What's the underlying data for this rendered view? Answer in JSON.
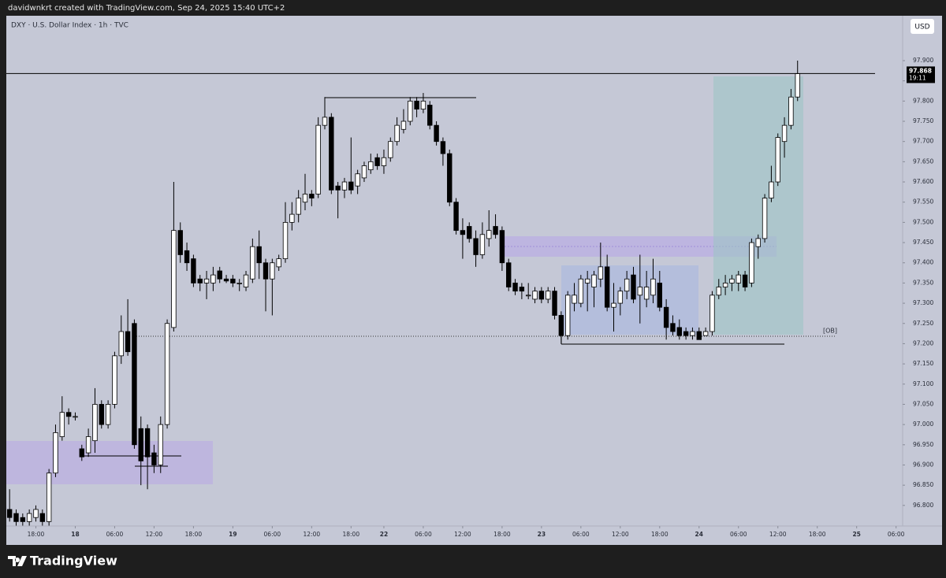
{
  "chart_data": {
    "type": "candlestick",
    "attribution": "davidwnkrt created with TradingView.com, Sep 24, 2025 15:40 UTC+2",
    "title": "DXY · U.S. Dollar Index · 1h · TVC",
    "currency": "USD",
    "countdown": "19:11",
    "annotation": "[OB]",
    "brand": "TradingView",
    "up_color": "#ffffff",
    "down_color": "#000000",
    "wick_color": "#000000",
    "open": [
      96.79,
      96.78,
      96.77,
      96.76,
      96.77,
      96.78,
      96.76,
      96.88,
      96.97,
      97.03,
      97.02,
      96.94,
      96.93,
      96.96,
      97.05,
      97.0,
      97.05,
      97.17,
      97.23,
      97.25,
      96.99,
      96.99,
      96.93,
      96.9,
      97.0,
      97.24,
      97.48,
      97.43,
      97.41,
      97.36,
      97.35,
      97.35,
      97.38,
      97.36,
      97.36,
      97.35,
      97.34,
      97.36,
      97.44,
      97.4,
      97.36,
      97.39,
      97.41,
      97.5,
      97.52,
      97.55,
      97.57,
      97.57,
      97.74,
      97.76,
      97.59,
      97.58,
      97.6,
      97.59,
      97.61,
      97.63,
      97.66,
      97.64,
      97.66,
      97.7,
      97.73,
      97.75,
      97.8,
      97.78,
      97.79,
      97.74,
      97.7,
      97.67,
      97.55,
      97.48,
      97.49,
      97.46,
      97.42,
      97.46,
      97.49,
      97.48,
      97.4,
      97.35,
      97.34,
      97.32,
      97.31,
      97.33,
      97.31,
      97.33,
      97.27,
      97.22,
      97.3,
      97.3,
      97.35,
      97.34,
      97.36,
      97.39,
      97.29,
      97.3,
      97.33,
      97.37,
      97.32,
      97.31,
      97.32,
      97.35,
      97.29,
      97.25,
      97.24,
      97.23,
      97.22,
      97.23,
      97.22,
      97.23,
      97.32,
      97.34,
      97.35,
      97.35,
      97.37,
      97.35,
      97.44,
      97.46,
      97.56,
      97.6,
      97.7,
      97.74,
      97.81
    ],
    "high": [
      96.84,
      96.79,
      96.78,
      96.79,
      96.8,
      96.79,
      96.89,
      97.0,
      97.07,
      97.04,
      97.03,
      96.95,
      96.99,
      97.09,
      97.06,
      97.06,
      97.18,
      97.27,
      97.31,
      97.26,
      97.02,
      97.0,
      96.95,
      97.02,
      97.26,
      97.6,
      97.5,
      97.45,
      97.42,
      97.37,
      97.38,
      97.39,
      97.39,
      97.37,
      97.37,
      97.36,
      97.38,
      97.46,
      97.48,
      97.41,
      97.41,
      97.42,
      97.55,
      97.55,
      97.58,
      97.62,
      97.58,
      97.76,
      97.81,
      97.77,
      97.6,
      97.61,
      97.71,
      97.63,
      97.65,
      97.67,
      97.67,
      97.68,
      97.71,
      97.76,
      97.78,
      97.81,
      97.81,
      97.82,
      97.8,
      97.75,
      97.71,
      97.68,
      97.56,
      97.51,
      97.5,
      97.48,
      97.5,
      97.53,
      97.52,
      97.49,
      97.41,
      97.36,
      97.35,
      97.35,
      97.34,
      97.34,
      97.34,
      97.34,
      97.28,
      97.33,
      97.35,
      97.37,
      97.38,
      97.38,
      97.45,
      97.42,
      97.35,
      97.34,
      97.38,
      97.39,
      97.42,
      97.38,
      97.41,
      97.38,
      97.31,
      97.27,
      97.26,
      97.24,
      97.24,
      97.24,
      97.24,
      97.33,
      97.36,
      97.37,
      97.37,
      97.38,
      97.38,
      97.46,
      97.47,
      97.57,
      97.64,
      97.72,
      97.76,
      97.83,
      97.9
    ],
    "low": [
      96.76,
      96.75,
      96.75,
      96.75,
      96.76,
      96.75,
      96.75,
      96.87,
      96.96,
      97.0,
      97.01,
      96.91,
      96.92,
      96.93,
      96.99,
      96.99,
      97.04,
      97.15,
      97.17,
      96.94,
      96.85,
      96.84,
      96.88,
      96.88,
      96.99,
      97.23,
      97.4,
      97.38,
      97.34,
      97.33,
      97.31,
      97.33,
      97.35,
      97.35,
      97.34,
      97.33,
      97.33,
      97.35,
      97.36,
      97.28,
      97.27,
      97.38,
      97.4,
      97.48,
      97.5,
      97.53,
      97.54,
      97.56,
      97.73,
      97.57,
      97.51,
      97.56,
      97.57,
      97.57,
      97.6,
      97.62,
      97.63,
      97.62,
      97.65,
      97.69,
      97.72,
      97.74,
      97.76,
      97.77,
      97.73,
      97.69,
      97.64,
      97.54,
      97.47,
      97.41,
      97.45,
      97.39,
      97.41,
      97.44,
      97.46,
      97.38,
      97.33,
      97.32,
      97.31,
      97.31,
      97.3,
      97.3,
      97.3,
      97.26,
      97.2,
      97.21,
      97.28,
      97.29,
      97.28,
      97.29,
      97.34,
      97.28,
      97.23,
      97.27,
      97.31,
      97.3,
      97.25,
      97.29,
      97.3,
      97.28,
      97.21,
      97.22,
      97.21,
      97.21,
      97.21,
      97.21,
      97.22,
      97.22,
      97.31,
      97.32,
      97.33,
      97.33,
      97.33,
      97.34,
      97.41,
      97.45,
      97.55,
      97.59,
      97.66,
      97.73,
      97.8
    ],
    "close": [
      96.77,
      96.76,
      96.76,
      96.78,
      96.79,
      96.76,
      96.88,
      96.98,
      97.03,
      97.02,
      97.02,
      96.92,
      96.97,
      97.05,
      97.0,
      97.05,
      97.17,
      97.23,
      97.18,
      96.95,
      96.91,
      96.92,
      96.9,
      97.0,
      97.25,
      97.48,
      97.42,
      97.4,
      97.35,
      97.35,
      97.36,
      97.37,
      97.36,
      97.355,
      97.35,
      97.35,
      97.37,
      97.44,
      97.4,
      97.36,
      97.4,
      97.41,
      97.5,
      97.52,
      97.56,
      97.57,
      97.56,
      97.74,
      97.76,
      97.58,
      97.58,
      97.6,
      97.58,
      97.62,
      97.64,
      97.65,
      97.64,
      97.66,
      97.7,
      97.74,
      97.75,
      97.8,
      97.78,
      97.8,
      97.74,
      97.7,
      97.67,
      97.55,
      97.48,
      97.47,
      97.46,
      97.42,
      97.47,
      97.48,
      97.47,
      97.4,
      97.34,
      97.33,
      97.33,
      97.32,
      97.33,
      97.31,
      97.33,
      97.27,
      97.22,
      97.32,
      97.32,
      97.36,
      97.36,
      97.37,
      97.39,
      97.29,
      97.3,
      97.33,
      97.36,
      97.31,
      97.34,
      97.34,
      97.36,
      97.29,
      97.24,
      97.23,
      97.22,
      97.22,
      97.23,
      97.21,
      97.23,
      97.32,
      97.34,
      97.35,
      97.36,
      97.37,
      97.34,
      97.45,
      97.46,
      97.56,
      97.6,
      97.71,
      97.74,
      97.81,
      97.868
    ],
    "xlim": [
      -0.5,
      136
    ],
    "xticks": [
      {
        "value": 4,
        "label": "18:00"
      },
      {
        "value": 10,
        "label": "18"
      },
      {
        "value": 16,
        "label": "06:00"
      },
      {
        "value": 22,
        "label": "12:00"
      },
      {
        "value": 28,
        "label": "18:00"
      },
      {
        "value": 34,
        "label": "19"
      },
      {
        "value": 40,
        "label": "06:00"
      },
      {
        "value": 46,
        "label": "12:00"
      },
      {
        "value": 52,
        "label": "18:00"
      },
      {
        "value": 57,
        "label": "22"
      },
      {
        "value": 63,
        "label": "06:00"
      },
      {
        "value": 69,
        "label": "12:00"
      },
      {
        "value": 75,
        "label": "18:00"
      },
      {
        "value": 81,
        "label": "23"
      },
      {
        "value": 87,
        "label": "06:00"
      },
      {
        "value": 93,
        "label": "12:00"
      },
      {
        "value": 99,
        "label": "18:00"
      },
      {
        "value": 105,
        "label": "24"
      },
      {
        "value": 111,
        "label": "06:00"
      },
      {
        "value": 117,
        "label": "12:00"
      },
      {
        "value": 123,
        "label": "18:00"
      },
      {
        "value": 129,
        "label": "25"
      },
      {
        "value": 135,
        "label": "06:00"
      }
    ],
    "ylim": [
      96.749,
      98.011
    ],
    "yticks": [
      {
        "value": 96.8,
        "label": "96.800"
      },
      {
        "value": 96.85,
        "label": "96.850"
      },
      {
        "value": 96.9,
        "label": "96.900"
      },
      {
        "value": 96.95,
        "label": "96.950"
      },
      {
        "value": 97.0,
        "label": "97.000"
      },
      {
        "value": 97.05,
        "label": "97.050"
      },
      {
        "value": 97.1,
        "label": "97.100"
      },
      {
        "value": 97.15,
        "label": "97.150"
      },
      {
        "value": 97.2,
        "label": "97.200"
      },
      {
        "value": 97.25,
        "label": "97.250"
      },
      {
        "value": 97.3,
        "label": "97.300"
      },
      {
        "value": 97.35,
        "label": "97.350"
      },
      {
        "value": 97.4,
        "label": "97.400"
      },
      {
        "value": 97.45,
        "label": "97.450"
      },
      {
        "value": 97.5,
        "label": "97.500"
      },
      {
        "value": 97.55,
        "label": "97.550"
      },
      {
        "value": 97.6,
        "label": "97.600"
      },
      {
        "value": 97.65,
        "label": "97.650"
      },
      {
        "value": 97.7,
        "label": "97.700"
      },
      {
        "value": 97.75,
        "label": "97.750"
      },
      {
        "value": 97.8,
        "label": "97.800"
      },
      {
        "value": 97.85,
        "label": "97.850"
      },
      {
        "value": 97.9,
        "label": "97.900"
      }
    ]
  }
}
